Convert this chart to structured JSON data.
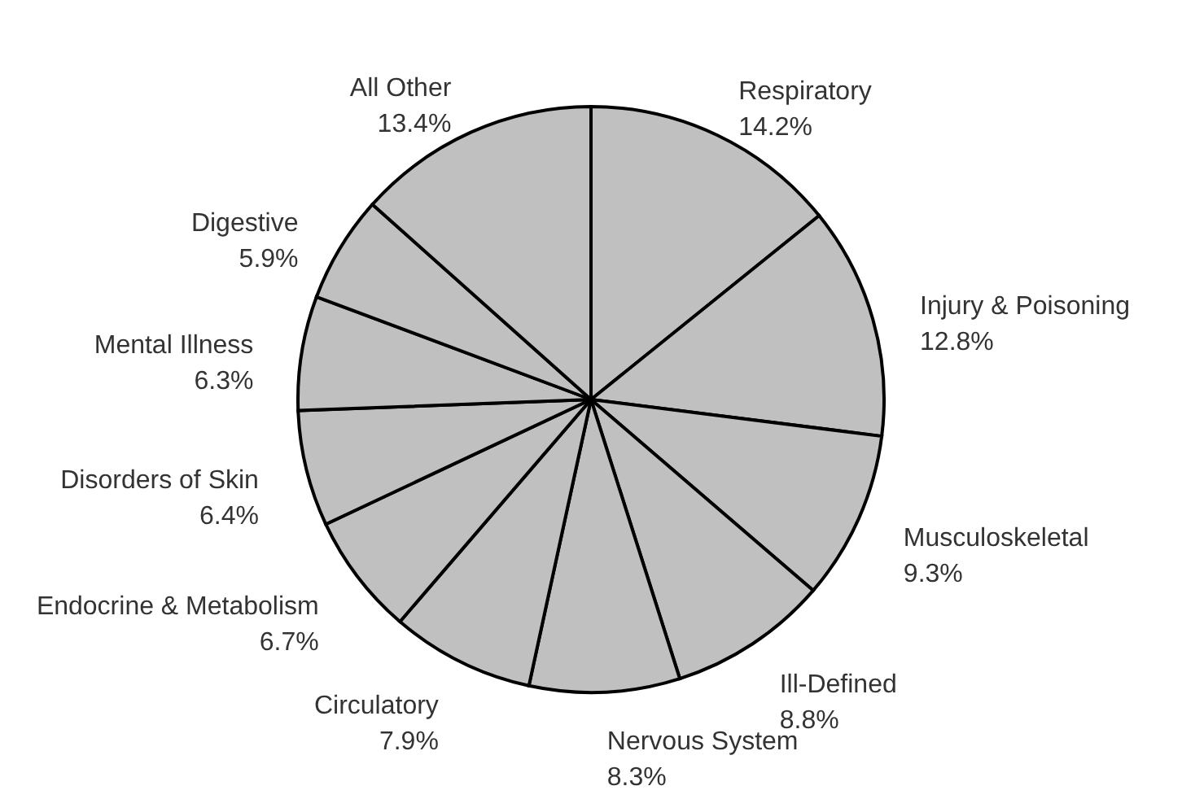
{
  "chart_data": {
    "type": "pie",
    "categories": [
      "Respiratory",
      "Injury & Poisoning",
      "Musculoskeletal",
      "Ill-Defined",
      "Nervous System",
      "Circulatory",
      "Endocrine & Metabolism",
      "Disorders of Skin",
      "Mental Illness",
      "Digestive",
      "All Other"
    ],
    "values": [
      14.2,
      12.8,
      9.3,
      8.8,
      8.3,
      7.9,
      6.7,
      6.4,
      6.3,
      5.9,
      13.4
    ],
    "value_labels": [
      "14.2%",
      "12.8%",
      "9.3%",
      "8.8%",
      "8.3%",
      "7.9%",
      "6.7%",
      "6.4%",
      "6.3%",
      "5.9%",
      "13.4%"
    ],
    "colors": [
      "#c0c0c0",
      "#c0c0c0",
      "#c0c0c0",
      "#c0c0c0",
      "#c0c0c0",
      "#c0c0c0",
      "#c0c0c0",
      "#c0c0c0",
      "#c0c0c0",
      "#c0c0c0",
      "#c0c0c0"
    ]
  }
}
